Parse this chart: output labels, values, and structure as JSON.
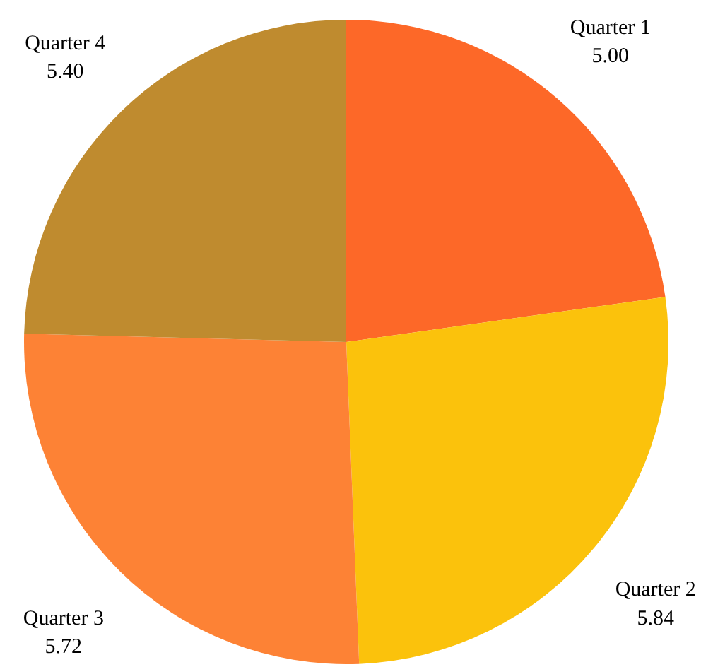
{
  "chart_data": {
    "type": "pie",
    "categories": [
      "Quarter 1",
      "Quarter 2",
      "Quarter 3",
      "Quarter 4"
    ],
    "values": [
      5.0,
      5.84,
      5.72,
      5.4
    ],
    "value_labels": [
      "5.00",
      "5.84",
      "5.72",
      "5.40"
    ],
    "colors": [
      "#fd6828",
      "#fbc20c",
      "#fd8235",
      "#bf8b2f"
    ]
  }
}
